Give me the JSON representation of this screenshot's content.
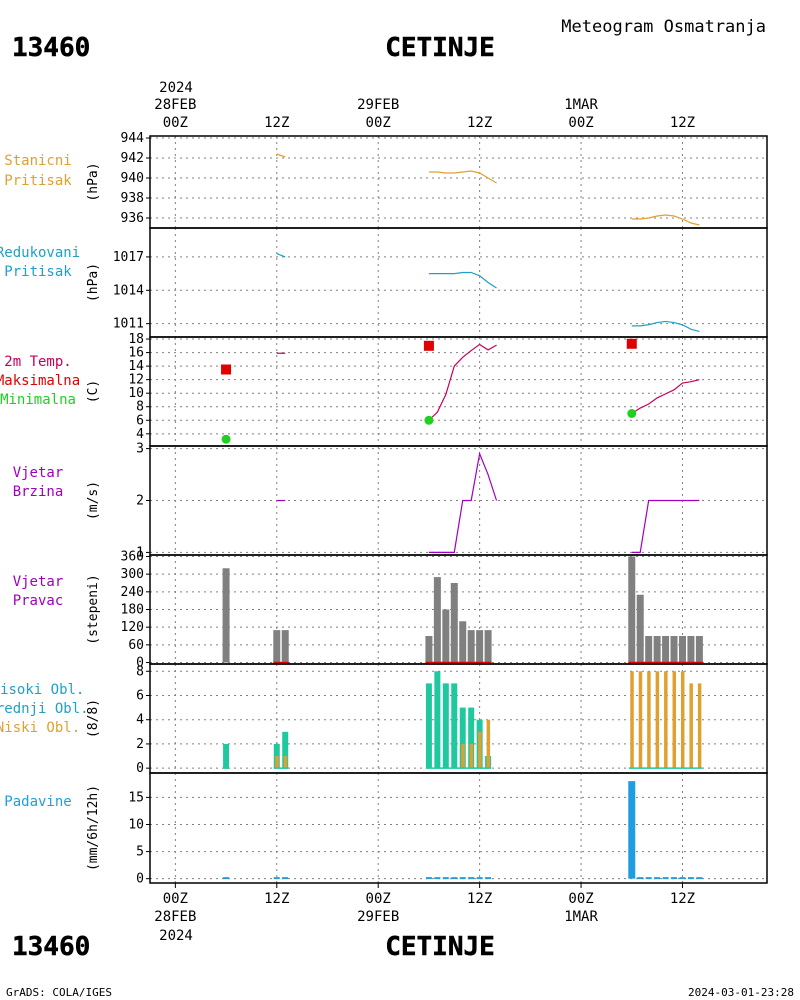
{
  "header": {
    "station_id": "13460",
    "station_name": "CETINJE",
    "subtitle": "Meteogram Osmatranja"
  },
  "footer": {
    "station_id": "13460",
    "station_name": "CETINJE",
    "credit": "GrADS: COLA/IGES",
    "timestamp": "2024-03-01-23:28"
  },
  "time_axis": {
    "top_year": "2024",
    "bottom_year": "2024",
    "ticks": [
      {
        "hour": 0,
        "top": [
          "28FEB",
          "00Z"
        ],
        "bottom": [
          "00Z",
          "28FEB"
        ]
      },
      {
        "hour": 12,
        "top": [
          "12Z"
        ],
        "bottom": [
          "12Z"
        ]
      },
      {
        "hour": 24,
        "top": [
          "29FEB",
          "00Z"
        ],
        "bottom": [
          "00Z",
          "29FEB"
        ]
      },
      {
        "hour": 36,
        "top": [
          "12Z"
        ],
        "bottom": [
          "12Z"
        ]
      },
      {
        "hour": 48,
        "top": [
          "1MAR",
          "00Z"
        ],
        "bottom": [
          "00Z",
          "1MAR"
        ]
      },
      {
        "hour": 60,
        "top": [
          "12Z"
        ],
        "bottom": [
          "12Z"
        ]
      }
    ],
    "range_hours": [
      -3,
      70
    ]
  },
  "colors": {
    "station_pressure": "#e0a030",
    "reduced_pressure": "#20a0c8",
    "temperature": "#c8005a",
    "tmax": "#e00000",
    "tmin": "#20d020",
    "wind_speed": "#a000c0",
    "wind_dir_bar": "#808080",
    "wind_dir_base": "#e00000",
    "cloud_high": "#20c8a0",
    "cloud_mid": "#20c8a0",
    "cloud_low": "#e0a030",
    "precip": "#1e9ee0",
    "grid": "#808080"
  },
  "chart_data": [
    {
      "id": "station_pressure",
      "type": "line",
      "labels": [
        "Stanicni",
        "Pritisak"
      ],
      "label_color": "#e0a030",
      "ylabel": "(hPa)",
      "ylim": [
        935,
        944.2
      ],
      "yticks": [
        936,
        938,
        940,
        942,
        944
      ],
      "series": [
        {
          "color": "#e0a030",
          "points": [
            [
              12,
              942.4
            ],
            [
              13,
              942.1
            ]
          ]
        },
        {
          "color": "#e0a030",
          "points": [
            [
              30,
              940.6
            ],
            [
              31,
              940.6
            ],
            [
              32,
              940.5
            ],
            [
              33,
              940.5
            ],
            [
              34,
              940.6
            ],
            [
              35,
              940.7
            ],
            [
              36,
              940.5
            ],
            [
              37,
              940.0
            ],
            [
              38,
              939.5
            ]
          ]
        },
        {
          "color": "#e0a030",
          "points": [
            [
              54,
              935.9
            ],
            [
              55,
              935.9
            ],
            [
              56,
              936.0
            ],
            [
              57,
              936.2
            ],
            [
              58,
              936.3
            ],
            [
              59,
              936.2
            ],
            [
              60,
              935.9
            ],
            [
              61,
              935.5
            ],
            [
              62,
              935.3
            ]
          ]
        }
      ]
    },
    {
      "id": "reduced_pressure",
      "type": "line",
      "labels": [
        "Redukovani",
        "Pritisak"
      ],
      "label_color": "#20a0c8",
      "ylabel": "(hPa)",
      "ylim": [
        1009.8,
        1019.6
      ],
      "yticks": [
        1011,
        1014,
        1017
      ],
      "series": [
        {
          "color": "#20a0c8",
          "points": [
            [
              12,
              1017.3
            ],
            [
              13,
              1017.0
            ]
          ]
        },
        {
          "color": "#20a0c8",
          "points": [
            [
              30,
              1015.5
            ],
            [
              31,
              1015.5
            ],
            [
              32,
              1015.5
            ],
            [
              33,
              1015.5
            ],
            [
              34,
              1015.6
            ],
            [
              35,
              1015.6
            ],
            [
              36,
              1015.3
            ],
            [
              37,
              1014.7
            ],
            [
              38,
              1014.2
            ]
          ]
        },
        {
          "color": "#20a0c8",
          "points": [
            [
              54,
              1010.8
            ],
            [
              55,
              1010.8
            ],
            [
              56,
              1010.9
            ],
            [
              57,
              1011.1
            ],
            [
              58,
              1011.2
            ],
            [
              59,
              1011.1
            ],
            [
              60,
              1010.9
            ],
            [
              61,
              1010.5
            ],
            [
              62,
              1010.3
            ]
          ]
        }
      ]
    },
    {
      "id": "temperature",
      "type": "line",
      "labels": [
        "2m Temp.",
        "Maksimalna",
        "Minimalna"
      ],
      "label_colors": [
        "#c8005a",
        "#e00000",
        "#20d020"
      ],
      "ylabel": "(C)",
      "ylim": [
        2.2,
        18.3
      ],
      "yticks": [
        4,
        6,
        8,
        10,
        12,
        14,
        16,
        18
      ],
      "series": [
        {
          "color": "#c8005a",
          "points": [
            [
              12,
              15.9
            ],
            [
              13,
              15.9
            ]
          ]
        },
        {
          "color": "#c8005a",
          "points": [
            [
              30,
              6.0
            ],
            [
              31,
              7.2
            ],
            [
              32,
              9.8
            ],
            [
              33,
              14.0
            ],
            [
              34,
              15.3
            ],
            [
              35,
              16.3
            ],
            [
              36,
              17.2
            ],
            [
              37,
              16.4
            ],
            [
              38,
              17.1
            ]
          ]
        },
        {
          "color": "#c8005a",
          "points": [
            [
              54,
              7.0
            ],
            [
              55,
              7.8
            ],
            [
              56,
              8.4
            ],
            [
              57,
              9.3
            ],
            [
              58,
              9.9
            ],
            [
              59,
              10.5
            ],
            [
              60,
              11.5
            ],
            [
              61,
              11.7
            ],
            [
              62,
              12.0
            ]
          ]
        }
      ],
      "tmax": [
        [
          6,
          13.5
        ],
        [
          30,
          17.0
        ],
        [
          54,
          17.3
        ]
      ],
      "tmin": [
        [
          6,
          3.2
        ],
        [
          30,
          6.0
        ],
        [
          54,
          7.0
        ]
      ]
    },
    {
      "id": "wind_speed",
      "type": "line",
      "labels": [
        "Vjetar",
        "Brzina"
      ],
      "label_color": "#a000c0",
      "ylabel": "(m/s)",
      "ylim": [
        0.95,
        3.05
      ],
      "yticks": [
        1,
        2,
        3
      ],
      "series": [
        {
          "color": "#a000c0",
          "points": [
            [
              12,
              2
            ],
            [
              13,
              2
            ]
          ]
        },
        {
          "color": "#a000c0",
          "points": [
            [
              30,
              1
            ],
            [
              31,
              1
            ],
            [
              32,
              1
            ],
            [
              33,
              1
            ],
            [
              34,
              2
            ],
            [
              35,
              2
            ],
            [
              36,
              2.9
            ],
            [
              37,
              2.5
            ],
            [
              38,
              2
            ]
          ]
        },
        {
          "color": "#a000c0",
          "points": [
            [
              54,
              1
            ],
            [
              55,
              1
            ],
            [
              56,
              2
            ],
            [
              57,
              2
            ],
            [
              58,
              2
            ],
            [
              59,
              2
            ],
            [
              60,
              2
            ],
            [
              61,
              2
            ],
            [
              62,
              2
            ]
          ]
        }
      ]
    },
    {
      "id": "wind_direction",
      "type": "bar",
      "labels": [
        "Vjetar",
        "Pravac"
      ],
      "label_color": "#a000c0",
      "ylabel": "(stepeni)",
      "ylim": [
        -5,
        365
      ],
      "yticks": [
        0,
        60,
        120,
        180,
        240,
        300,
        360
      ],
      "bars": [
        [
          6,
          320
        ],
        [
          12,
          110
        ],
        [
          13,
          110
        ],
        [
          30,
          90
        ],
        [
          31,
          290
        ],
        [
          32,
          180
        ],
        [
          33,
          270
        ],
        [
          34,
          140
        ],
        [
          35,
          110
        ],
        [
          36,
          110
        ],
        [
          37,
          110
        ],
        [
          54,
          360
        ],
        [
          55,
          230
        ],
        [
          56,
          90
        ],
        [
          57,
          90
        ],
        [
          58,
          90
        ],
        [
          59,
          90
        ],
        [
          60,
          90
        ],
        [
          61,
          90
        ],
        [
          62,
          90
        ]
      ]
    },
    {
      "id": "clouds",
      "type": "bar",
      "labels": [
        "Visoki Obl.",
        "Srednji Obl.",
        "Niski Obl."
      ],
      "label_colors": [
        "#20a0c8",
        "#20a0c8",
        "#e0a030"
      ],
      "ylabel": "(8/8)",
      "ylim": [
        -0.4,
        8.6
      ],
      "yticks": [
        0,
        2,
        4,
        6,
        8
      ],
      "mid": [
        [
          6,
          2
        ],
        [
          12,
          2
        ],
        [
          13,
          3
        ],
        [
          30,
          7
        ],
        [
          31,
          8
        ],
        [
          32,
          7
        ],
        [
          33,
          7
        ],
        [
          34,
          5
        ],
        [
          35,
          5
        ],
        [
          36,
          4
        ],
        [
          37,
          1
        ]
      ],
      "low": [
        [
          12,
          1
        ],
        [
          13,
          1
        ],
        [
          34,
          2
        ],
        [
          35,
          2
        ],
        [
          36,
          3
        ],
        [
          37,
          4
        ],
        [
          54,
          8
        ],
        [
          55,
          8
        ],
        [
          56,
          8
        ],
        [
          57,
          8
        ],
        [
          58,
          8
        ],
        [
          59,
          8
        ],
        [
          60,
          8
        ],
        [
          61,
          7
        ],
        [
          62,
          7
        ]
      ]
    },
    {
      "id": "precipitation",
      "type": "bar",
      "labels": [
        "Padavine"
      ],
      "label_color": "#1e9ee0",
      "ylabel": "(mm/6h/12h)",
      "ylim": [
        -0.8,
        19.5
      ],
      "yticks": [
        0,
        5,
        10,
        15
      ],
      "bars": [
        [
          54,
          18
        ]
      ],
      "trace": [
        [
          6,
          0.1
        ],
        [
          12,
          0.1
        ],
        [
          13,
          0.1
        ],
        [
          30,
          0.1
        ],
        [
          31,
          0.1
        ],
        [
          32,
          0.1
        ],
        [
          33,
          0.1
        ],
        [
          34,
          0.1
        ],
        [
          35,
          0.1
        ],
        [
          36,
          0.1
        ],
        [
          37,
          0.1
        ],
        [
          55,
          0.1
        ],
        [
          56,
          0.1
        ],
        [
          57,
          0.1
        ],
        [
          58,
          0.1
        ],
        [
          59,
          0.1
        ],
        [
          60,
          0.1
        ],
        [
          61,
          0.1
        ],
        [
          62,
          0.1
        ]
      ]
    }
  ]
}
